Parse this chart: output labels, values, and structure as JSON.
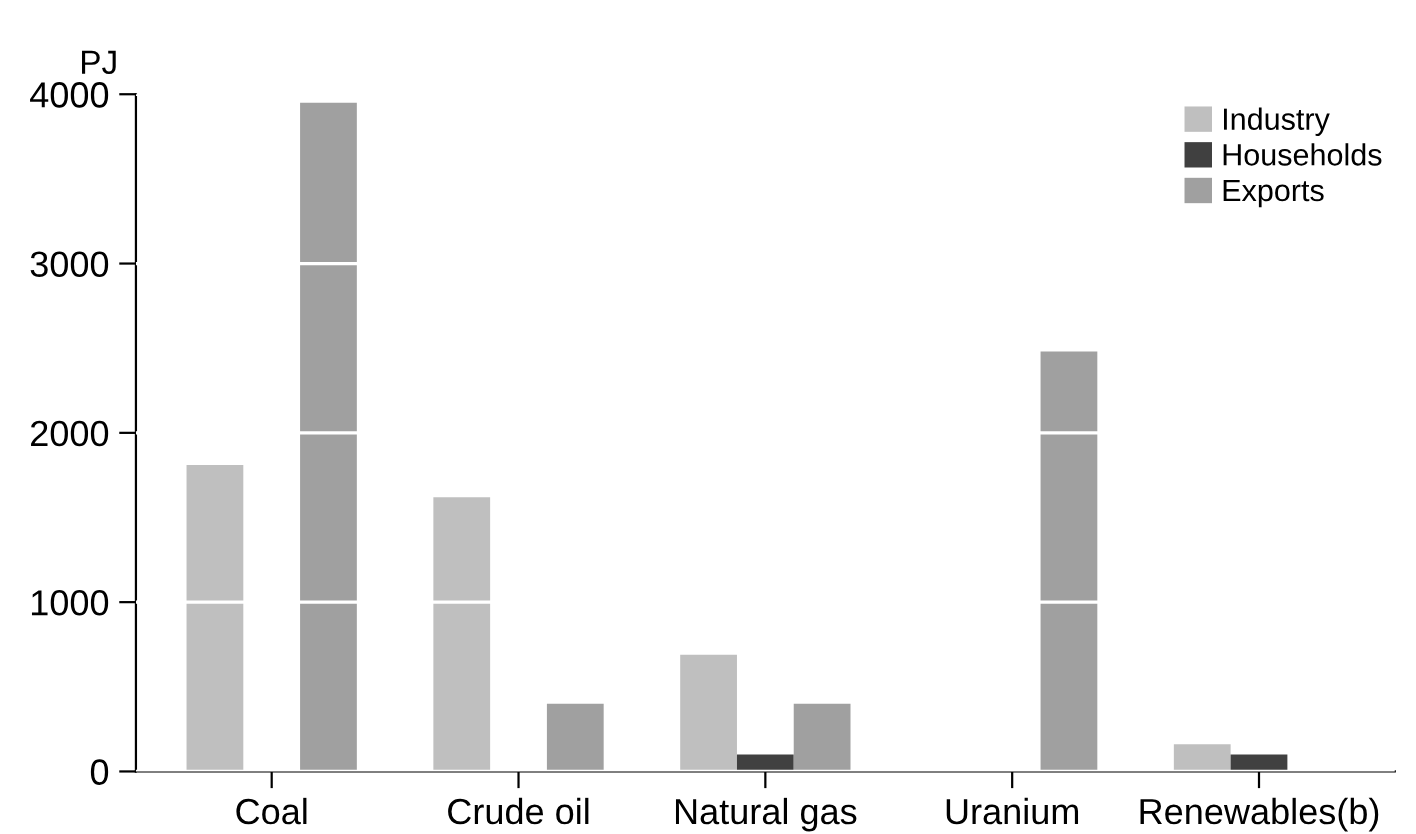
{
  "chart_data": {
    "type": "bar",
    "ylabel": "PJ",
    "categories": [
      "Coal",
      "Crude oil",
      "Natural gas",
      "Uranium",
      "Renewables(b)"
    ],
    "series": [
      {
        "name": "Industry",
        "color": "#bfbfbf",
        "values": [
          1810,
          1620,
          690,
          null,
          160
        ]
      },
      {
        "name": "Households",
        "color": "#404040",
        "values": [
          null,
          null,
          100,
          null,
          100
        ]
      },
      {
        "name": "Exports",
        "color": "#a0a0a0",
        "values": [
          3950,
          400,
          400,
          2480,
          null
        ]
      }
    ],
    "ylim": [
      0,
      4000
    ],
    "yticks": [
      0,
      1000,
      2000,
      3000,
      4000
    ],
    "grid": "y",
    "legend": "top right"
  }
}
